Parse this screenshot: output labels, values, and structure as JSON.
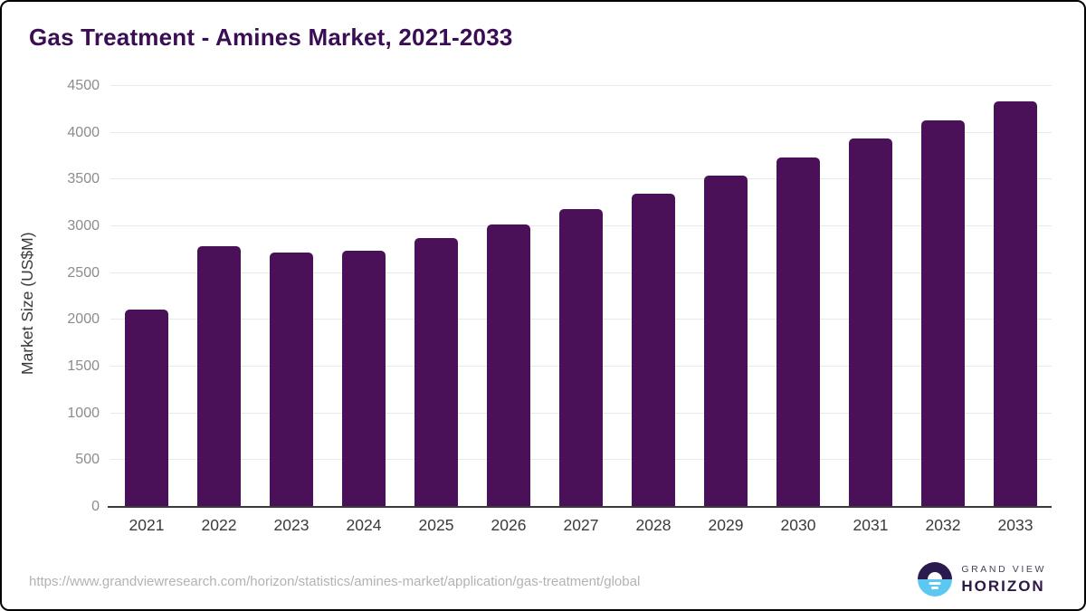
{
  "header": {
    "title": "Gas Treatment - Amines Market, 2021-2033"
  },
  "chart_data": {
    "type": "bar",
    "title": "Gas Treatment - Amines Market, 2021-2033",
    "categories": [
      "2021",
      "2022",
      "2023",
      "2024",
      "2025",
      "2026",
      "2027",
      "2028",
      "2029",
      "2030",
      "2031",
      "2032",
      "2033"
    ],
    "values": [
      2100,
      2780,
      2710,
      2730,
      2860,
      3010,
      3170,
      3340,
      3530,
      3730,
      3930,
      4120,
      4330
    ],
    "xlabel": "",
    "ylabel": "Market Size (US$M)",
    "ylim": [
      0,
      4500
    ],
    "ytick_step": 500,
    "yticks": [
      "0",
      "500",
      "1000",
      "1500",
      "2000",
      "2500",
      "3000",
      "3500",
      "4000",
      "4500"
    ],
    "grid": "horizontal",
    "legend": "none",
    "bar_color": "#4a1158",
    "gridline_color": "#e9e9e9",
    "axis_line_color": "#3a3a3a"
  },
  "footer": {
    "source_url": "https://www.grandviewresearch.com/horizon/statistics/amines-market/application/gas-treatment/global",
    "logo": {
      "line1": "GRAND VIEW",
      "line2": "HORIZON",
      "circle_top_color": "#2b1a4d",
      "circle_bottom_color": "#5cc8f2"
    }
  },
  "colors": {
    "title": "#3a0d54",
    "bar": "#4a1158"
  }
}
